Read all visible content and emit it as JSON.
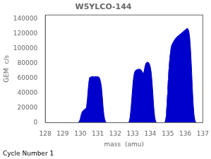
{
  "chart_data": {
    "type": "area",
    "title": "W5YLCO-144",
    "xlabel": "mass  (amu)",
    "ylabel": "GEM  c/s",
    "annotations": [
      "Cycle Number 1"
    ],
    "color": "#0000cc",
    "grid": false,
    "xlim": [
      128,
      137
    ],
    "ylim": [
      0,
      145000
    ],
    "xticks": [
      128,
      129,
      130,
      131,
      132,
      133,
      134,
      135,
      136,
      137
    ],
    "yticks": [
      0,
      20000,
      40000,
      60000,
      80000,
      100000,
      120000,
      140000
    ],
    "series": [
      {
        "x": [
          129.88,
          129.9,
          129.95,
          130.0,
          130.02,
          130.04,
          130.06,
          130.08,
          130.1,
          130.12,
          130.15,
          130.2,
          130.25,
          130.3,
          130.35,
          130.4,
          130.45,
          130.48,
          130.5,
          130.52,
          130.55,
          130.6,
          130.65,
          130.7,
          130.75,
          130.8,
          130.85,
          130.9,
          130.95,
          131.0,
          131.05,
          131.1,
          131.15,
          131.2,
          131.25,
          131.3,
          131.35,
          131.4,
          131.45,
          131.5
        ],
        "values": [
          0,
          500,
          2000,
          5000,
          8000,
          10000,
          11500,
          13000,
          14000,
          15000,
          16000,
          17000,
          18000,
          19000,
          20000,
          30000,
          45000,
          52000,
          57000,
          60000,
          61000,
          61500,
          62000,
          62000,
          62000,
          62000,
          62000,
          62000,
          62000,
          62000,
          61500,
          60000,
          56000,
          50000,
          38000,
          22000,
          10000,
          4000,
          1000,
          0
        ]
      },
      {
        "x": [
          132.75,
          132.8,
          132.85,
          132.9,
          132.95,
          133.0,
          133.05,
          133.1,
          133.15,
          133.2,
          133.25,
          133.3,
          133.35,
          133.4,
          133.45,
          133.5,
          133.55,
          133.6,
          133.65,
          133.7,
          133.75,
          133.8,
          133.85,
          133.9,
          133.95,
          134.0,
          134.05,
          134.1,
          134.15,
          134.2,
          134.25,
          134.3,
          134.35,
          134.4
        ],
        "values": [
          0,
          2000,
          8000,
          20000,
          35000,
          50000,
          62000,
          68000,
          70000,
          71000,
          71500,
          72000,
          72000,
          72000,
          71500,
          70000,
          68000,
          65000,
          70000,
          76000,
          80000,
          81000,
          81500,
          81000,
          79000,
          75000,
          68000,
          55000,
          38000,
          20000,
          8000,
          2000,
          300,
          0
        ]
      },
      {
        "x": [
          134.78,
          134.82,
          134.86,
          134.9,
          134.92,
          134.94,
          134.96,
          134.98,
          135.0,
          135.02,
          135.04,
          135.06,
          135.08,
          135.1,
          135.12,
          135.14,
          135.16,
          135.18,
          135.2,
          135.3,
          135.4,
          135.5,
          135.6,
          135.7,
          135.8,
          135.9,
          136.0,
          136.05,
          136.08,
          136.1,
          136.12,
          136.15,
          136.2,
          136.25,
          136.3,
          136.35,
          136.4,
          136.45,
          136.5,
          136.55,
          136.6,
          136.65
        ],
        "values": [
          0,
          500,
          2000,
          8000,
          15000,
          22000,
          30000,
          38000,
          48000,
          57000,
          65000,
          72000,
          78000,
          84000,
          89000,
          93000,
          97000,
          100000,
          103000,
          108000,
          112000,
          115000,
          117000,
          119000,
          121000,
          123000,
          125000,
          126000,
          126500,
          127000,
          127000,
          126500,
          123000,
          115000,
          98000,
          75000,
          48000,
          25000,
          10000,
          3000,
          500,
          0
        ]
      }
    ]
  }
}
